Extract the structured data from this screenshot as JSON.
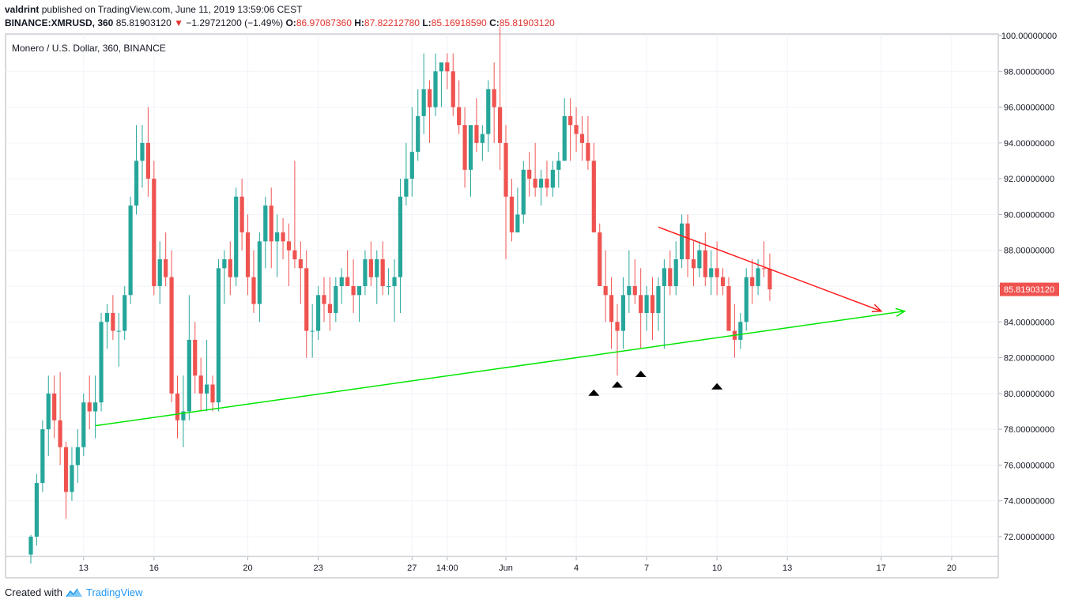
{
  "header": {
    "author": "valdrint",
    "published_text": "published on TradingView.com, June 11, 2019 13:59:06 CEST",
    "symbol_interval": "BINANCE:XMRUSD, 360",
    "last": "85.81903120",
    "change": "−1.29721200 (−1.49%)",
    "o_label": "O:",
    "o": "86.97087360",
    "h_label": "H:",
    "h": "87.82212780",
    "l_label": "L:",
    "l": "85.16918590",
    "c_label": "C:",
    "c": "85.81903120"
  },
  "footer": {
    "created_with": "Created with",
    "brand": "TradingView"
  },
  "colors": {
    "up": "#26a69a",
    "down": "#ef5350",
    "support": "#00e600",
    "resistance": "#ff1a1a",
    "price_tag": "#ef5350"
  },
  "chart_data": {
    "type": "candlestick",
    "title": "Monero / U.S. Dollar, 360, BINANCE",
    "ylim": [
      70.8,
      100.4
    ],
    "y_ticks": [
      "100.00000000",
      "98.00000000",
      "96.00000000",
      "94.00000000",
      "92.00000000",
      "90.00000000",
      "88.00000000",
      "86.00000000",
      "84.00000000",
      "82.00000000",
      "80.00000000",
      "78.00000000",
      "76.00000000",
      "74.00000000",
      "72.00000000"
    ],
    "y_tick_values": [
      100,
      98,
      96,
      94,
      92,
      90,
      88,
      86,
      84,
      82,
      80,
      78,
      76,
      74,
      72
    ],
    "x_ticks": [
      {
        "label": "13",
        "i": 9
      },
      {
        "label": "16",
        "i": 21
      },
      {
        "label": "20",
        "i": 37
      },
      {
        "label": "23",
        "i": 49
      },
      {
        "label": "27",
        "i": 65
      },
      {
        "label": "14:00",
        "i": 71
      },
      {
        "label": "Jun",
        "i": 81
      },
      {
        "label": "4",
        "i": 93
      },
      {
        "label": "7",
        "i": 105
      },
      {
        "label": "10",
        "i": 117
      },
      {
        "label": "13",
        "i": 129
      },
      {
        "label": "17",
        "i": 145
      },
      {
        "label": "20",
        "i": 157
      }
    ],
    "candles_ohlc": [
      [
        71.0,
        72.1,
        70.5,
        72.0
      ],
      [
        72.0,
        75.5,
        71.5,
        75.0
      ],
      [
        75.0,
        78.5,
        74.5,
        78.0
      ],
      [
        78.0,
        81.0,
        76.5,
        80.0
      ],
      [
        80.0,
        81.0,
        77.5,
        78.5
      ],
      [
        78.5,
        81.2,
        76.0,
        77.0
      ],
      [
        77.0,
        77.3,
        73.0,
        74.5
      ],
      [
        74.5,
        77.0,
        74.0,
        76.0
      ],
      [
        76.0,
        78.0,
        75.0,
        77.0
      ],
      [
        77.0,
        80.0,
        76.5,
        79.5
      ],
      [
        79.5,
        81.0,
        78.0,
        79.0
      ],
      [
        79.0,
        81.0,
        77.5,
        79.5
      ],
      [
        79.5,
        84.5,
        79.0,
        84.0
      ],
      [
        84.0,
        85.0,
        82.5,
        84.5
      ],
      [
        84.5,
        85.5,
        83.0,
        83.5
      ],
      [
        83.5,
        84.5,
        81.5,
        83.5
      ],
      [
        83.5,
        86.0,
        83.0,
        85.5
      ],
      [
        85.5,
        91.0,
        85.0,
        90.5
      ],
      [
        90.5,
        95.0,
        90.0,
        93.0
      ],
      [
        93.0,
        95.0,
        91.5,
        94.0
      ],
      [
        94.0,
        96.0,
        91.0,
        92.0
      ],
      [
        92.0,
        93.0,
        85.5,
        86.0
      ],
      [
        86.0,
        88.5,
        85.0,
        87.5
      ],
      [
        87.5,
        89.0,
        86.0,
        86.5
      ],
      [
        86.5,
        88.0,
        79.5,
        80.0
      ],
      [
        80.0,
        81.0,
        77.5,
        78.5
      ],
      [
        78.5,
        81.0,
        77.0,
        79.0
      ],
      [
        79.0,
        85.5,
        78.5,
        83.0
      ],
      [
        83.0,
        84.0,
        80.0,
        81.0
      ],
      [
        81.0,
        82.0,
        79.0,
        80.0
      ],
      [
        80.0,
        83.0,
        79.0,
        80.5
      ],
      [
        80.5,
        81.0,
        79.0,
        79.5
      ],
      [
        79.5,
        87.5,
        79.0,
        87.0
      ],
      [
        87.0,
        88.0,
        85.0,
        87.5
      ],
      [
        87.5,
        88.5,
        85.5,
        86.5
      ],
      [
        86.5,
        91.5,
        86.0,
        91.0
      ],
      [
        91.0,
        92.0,
        88.0,
        89.0
      ],
      [
        89.0,
        90.0,
        85.5,
        86.5
      ],
      [
        86.5,
        88.0,
        84.5,
        85.0
      ],
      [
        85.0,
        89.0,
        84.0,
        88.5
      ],
      [
        88.5,
        91.0,
        87.0,
        90.5
      ],
      [
        90.5,
        91.5,
        87.0,
        88.5
      ],
      [
        88.5,
        90.0,
        86.5,
        89.0
      ],
      [
        89.0,
        89.8,
        87.5,
        88.5
      ],
      [
        88.5,
        89.5,
        86.0,
        88.0
      ],
      [
        88.0,
        93.0,
        87.0,
        87.5
      ],
      [
        87.5,
        88.5,
        85.0,
        87.0
      ],
      [
        87.0,
        88.0,
        82.0,
        83.5
      ],
      [
        83.5,
        85.0,
        82.0,
        83.5
      ],
      [
        83.5,
        86.0,
        83.0,
        85.5
      ],
      [
        85.5,
        86.5,
        84.0,
        85.0
      ],
      [
        85.0,
        86.5,
        83.5,
        84.5
      ],
      [
        84.5,
        86.5,
        84.0,
        86.0
      ],
      [
        86.0,
        87.0,
        85.0,
        86.5
      ],
      [
        86.5,
        88.0,
        86.0,
        86.0
      ],
      [
        86.0,
        87.5,
        84.5,
        85.5
      ],
      [
        85.5,
        86.0,
        84.0,
        86.0
      ],
      [
        86.0,
        88.0,
        85.5,
        87.5
      ],
      [
        87.5,
        88.5,
        86.0,
        86.5
      ],
      [
        86.5,
        88.0,
        85.0,
        87.5
      ],
      [
        87.5,
        88.5,
        85.5,
        86.0
      ],
      [
        86.0,
        87.0,
        85.5,
        86.0
      ],
      [
        86.0,
        87.5,
        84.0,
        86.5
      ],
      [
        86.5,
        92.0,
        84.5,
        91.0
      ],
      [
        91.0,
        94.0,
        90.5,
        92.0
      ],
      [
        92.0,
        96.0,
        91.0,
        93.5
      ],
      [
        93.5,
        97.0,
        93.0,
        95.5
      ],
      [
        95.5,
        99.0,
        94.5,
        97.0
      ],
      [
        97.0,
        97.5,
        94.0,
        96.0
      ],
      [
        96.0,
        99.0,
        95.5,
        98.0
      ],
      [
        98.0,
        98.5,
        96.0,
        98.5
      ],
      [
        98.5,
        99.0,
        97.0,
        98.0
      ],
      [
        98.0,
        99.0,
        95.5,
        96.0
      ],
      [
        96.0,
        97.5,
        94.5,
        95.0
      ],
      [
        95.0,
        96.0,
        91.5,
        92.5
      ],
      [
        92.5,
        94.5,
        91.0,
        95.0
      ],
      [
        95.0,
        96.5,
        93.5,
        94.0
      ],
      [
        94.0,
        95.0,
        93.0,
        94.5
      ],
      [
        94.5,
        97.5,
        93.5,
        97.0
      ],
      [
        97.0,
        98.5,
        94.0,
        96.0
      ],
      [
        96.0,
        100.5,
        92.5,
        94.0
      ],
      [
        94.0,
        95.0,
        87.5,
        91.0
      ],
      [
        91.0,
        92.0,
        88.5,
        89.0
      ],
      [
        89.0,
        91.5,
        89.0,
        90.0
      ],
      [
        90.0,
        93.0,
        89.5,
        92.5
      ],
      [
        92.5,
        93.5,
        91.0,
        92.0
      ],
      [
        92.0,
        94.0,
        91.0,
        91.5
      ],
      [
        91.5,
        92.5,
        90.5,
        92.0
      ],
      [
        92.0,
        93.0,
        91.0,
        91.5
      ],
      [
        91.5,
        93.0,
        91.0,
        92.5
      ],
      [
        92.5,
        93.5,
        91.5,
        93.0
      ],
      [
        93.0,
        96.5,
        93.0,
        95.5
      ],
      [
        95.5,
        96.5,
        93.0,
        95.0
      ],
      [
        95.0,
        96.0,
        93.5,
        94.5
      ],
      [
        94.5,
        95.5,
        93.0,
        94.0
      ],
      [
        94.0,
        95.5,
        92.5,
        93.0
      ],
      [
        93.0,
        94.0,
        89.5,
        89.0
      ],
      [
        89.0,
        89.5,
        86.0,
        86.0
      ],
      [
        86.0,
        88.0,
        84.0,
        85.5
      ],
      [
        85.5,
        86.5,
        82.5,
        84.0
      ],
      [
        84.0,
        85.0,
        81.0,
        83.5
      ],
      [
        83.5,
        86.5,
        82.5,
        85.5
      ],
      [
        85.5,
        88.0,
        84.5,
        86.0
      ],
      [
        86.0,
        87.5,
        85.0,
        85.5
      ],
      [
        85.5,
        87.0,
        82.5,
        84.5
      ],
      [
        84.5,
        86.0,
        83.5,
        85.5
      ],
      [
        85.5,
        86.5,
        83.0,
        84.5
      ],
      [
        84.5,
        86.5,
        83.5,
        86.0
      ],
      [
        86.0,
        87.5,
        82.5,
        87.0
      ],
      [
        87.0,
        88.0,
        85.5,
        86.0
      ],
      [
        86.0,
        88.5,
        85.5,
        87.5
      ],
      [
        87.5,
        90.0,
        87.0,
        89.5
      ],
      [
        89.5,
        90.0,
        86.5,
        87.5
      ],
      [
        87.5,
        88.5,
        86.0,
        87.0
      ],
      [
        87.0,
        88.5,
        86.5,
        88.0
      ],
      [
        88.0,
        89.0,
        86.0,
        86.5
      ],
      [
        86.5,
        88.0,
        85.5,
        87.0
      ],
      [
        87.0,
        88.5,
        85.5,
        86.5
      ],
      [
        86.5,
        87.0,
        85.5,
        86.0
      ],
      [
        86.0,
        86.5,
        84.5,
        83.5
      ],
      [
        83.5,
        85.0,
        82.0,
        83.0
      ],
      [
        83.0,
        84.5,
        82.5,
        84.0
      ],
      [
        84.0,
        87.0,
        83.5,
        86.5
      ],
      [
        86.5,
        87.5,
        85.0,
        86.0
      ],
      [
        86.0,
        87.5,
        85.5,
        87.0
      ],
      [
        87.0,
        88.5,
        86.5,
        86.97
      ],
      [
        86.97,
        87.82,
        85.17,
        85.82
      ]
    ],
    "series": [
      {
        "name": "support trendline",
        "color": "#00e600",
        "from_i": 11,
        "from_y": 78.2,
        "to_i": 149,
        "to_y": 84.6,
        "arrow": true
      },
      {
        "name": "resistance trendline",
        "color": "#ff1a1a",
        "from_i": 107,
        "from_y": 89.3,
        "to_i": 145,
        "to_y": 84.6,
        "arrow": true
      }
    ],
    "markers": [
      {
        "i": 96,
        "y": 80.05,
        "shape": "triangle-up"
      },
      {
        "i": 100,
        "y": 80.5,
        "shape": "triangle-up"
      },
      {
        "i": 104,
        "y": 81.1,
        "shape": "triangle-up"
      },
      {
        "i": 117,
        "y": 80.4,
        "shape": "triangle-up"
      }
    ],
    "last_price_label": "85.81903120",
    "last_price": 85.8190312
  }
}
